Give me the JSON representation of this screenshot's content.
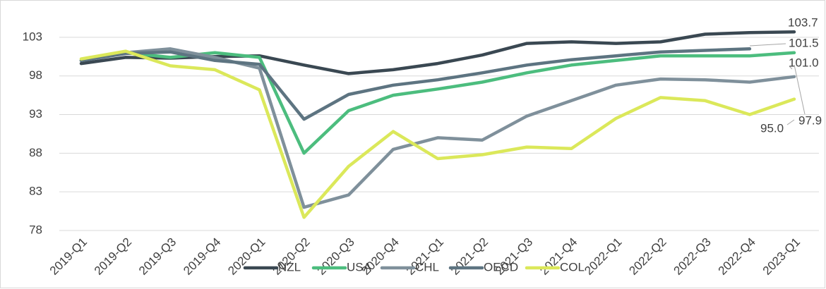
{
  "chart_data": {
    "type": "line",
    "categories": [
      "2019-Q1",
      "2019-Q2",
      "2019-Q3",
      "2019-Q4",
      "2020-Q1",
      "2020-Q2",
      "2020-Q3",
      "2020-Q4",
      "2021-Q1",
      "2021-Q2",
      "2021-Q3",
      "2021-Q4",
      "2022-Q1",
      "2022-Q2",
      "2022-Q3",
      "2022-Q4",
      "2023-Q1"
    ],
    "ylim": [
      78,
      107
    ],
    "yticks": [
      78,
      83,
      88,
      93,
      98,
      103
    ],
    "grid": true,
    "legend": "bottom",
    "series": [
      {
        "name": "NZL",
        "color": "#3a4852",
        "values": [
          99.6,
          100.4,
          100.3,
          100.5,
          100.6,
          99.4,
          98.3,
          98.8,
          99.6,
          100.7,
          102.2,
          102.4,
          102.2,
          102.4,
          103.4,
          103.6,
          103.7
        ],
        "value_labels": [
          null,
          null,
          null,
          null,
          null,
          null,
          null,
          null,
          null,
          null,
          null,
          null,
          null,
          null,
          null,
          null,
          "103.7"
        ]
      },
      {
        "name": "USA",
        "color": "#4cbd7e",
        "values": [
          100.0,
          101.0,
          100.4,
          101.0,
          100.4,
          88.0,
          93.5,
          95.5,
          96.3,
          97.2,
          98.4,
          99.4,
          100.0,
          100.6,
          100.6,
          100.6,
          101.0
        ],
        "value_labels": [
          null,
          null,
          null,
          null,
          null,
          null,
          null,
          null,
          null,
          null,
          null,
          null,
          null,
          null,
          null,
          null,
          "101.0"
        ]
      },
      {
        "name": "CHL",
        "color": "#7f909b",
        "values": [
          100.0,
          101.0,
          101.5,
          100.4,
          99.0,
          81.0,
          82.6,
          88.5,
          90.0,
          89.7,
          92.8,
          94.8,
          96.8,
          97.6,
          97.5,
          97.2,
          97.9
        ],
        "value_labels": [
          null,
          null,
          null,
          null,
          null,
          null,
          null,
          null,
          null,
          null,
          null,
          null,
          null,
          null,
          null,
          null,
          "97.9"
        ]
      },
      {
        "name": "OECD",
        "color": "#5d7481",
        "values": [
          100.0,
          100.9,
          101.1,
          100.0,
          99.5,
          92.4,
          95.6,
          96.8,
          97.5,
          98.4,
          99.4,
          100.1,
          100.6,
          101.1,
          101.3,
          101.5,
          null
        ],
        "value_labels": [
          null,
          null,
          null,
          null,
          null,
          null,
          null,
          null,
          null,
          null,
          null,
          null,
          null,
          null,
          null,
          "101.5",
          null
        ]
      },
      {
        "name": "COL",
        "color": "#dbe85a",
        "values": [
          100.2,
          101.2,
          99.3,
          98.8,
          96.2,
          79.7,
          86.3,
          90.8,
          87.3,
          87.8,
          88.8,
          88.6,
          92.5,
          95.2,
          94.8,
          93.0,
          95.0
        ],
        "value_labels": [
          null,
          null,
          null,
          null,
          null,
          null,
          null,
          null,
          null,
          null,
          null,
          null,
          null,
          null,
          null,
          null,
          "95.0"
        ]
      }
    ]
  }
}
